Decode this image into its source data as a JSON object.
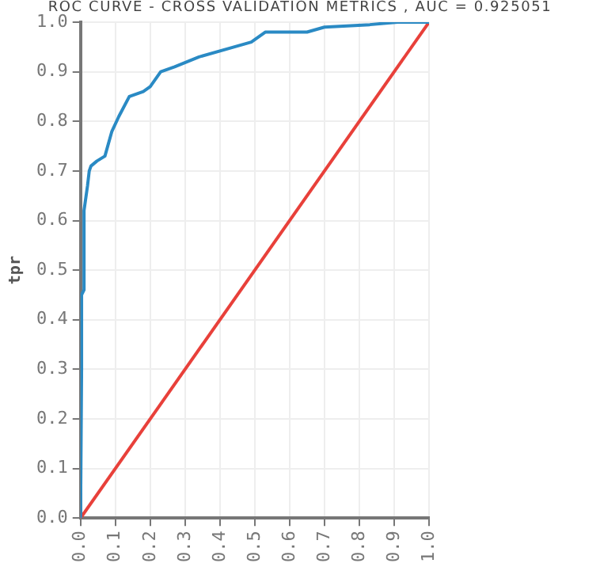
{
  "chart_data": {
    "type": "line",
    "title": "ROC CURVE - CROSS VALIDATION METRICS , AUC = 0.925051",
    "ylabel": "tpr",
    "series": [
      {
        "color": "#2a8ac4",
        "x": [
          0,
          0.003,
          0.003,
          0.01,
          0.01,
          0.02,
          0.025,
          0.03,
          0.047,
          0.07,
          0.09,
          0.11,
          0.14,
          0.18,
          0.2,
          0.23,
          0.27,
          0.34,
          0.44,
          0.49,
          0.53,
          0.65,
          0.7,
          0.83,
          0.91,
          1
        ],
        "values": [
          0,
          0.3,
          0.45,
          0.46,
          0.62,
          0.67,
          0.7,
          0.71,
          0.72,
          0.73,
          0.78,
          0.81,
          0.85,
          0.86,
          0.87,
          0.9,
          0.91,
          0.93,
          0.95,
          0.96,
          0.98,
          0.98,
          0.99,
          0.995,
          1,
          1
        ]
      },
      {
        "color": "#e8403a",
        "x": [
          0,
          1
        ],
        "values": [
          0,
          1
        ]
      }
    ],
    "xlim": [
      0,
      1
    ],
    "ylim": [
      0,
      1
    ],
    "xticks": [
      {
        "value": 0,
        "label": "0.0"
      },
      0.1,
      0.2,
      0.3,
      0.4,
      0.5,
      0.6,
      0.7,
      0.8,
      0.9,
      {
        "value": 1,
        "label": "1.0"
      }
    ],
    "yticks": [
      {
        "value": 0,
        "label": "0.0"
      },
      0.1,
      0.2,
      0.3,
      0.4,
      0.5,
      0.6,
      0.7,
      0.8,
      0.9,
      {
        "value": 1,
        "label": "1.0"
      }
    ],
    "grid": true,
    "legend": false,
    "marker": "none",
    "line_style": "solid"
  }
}
